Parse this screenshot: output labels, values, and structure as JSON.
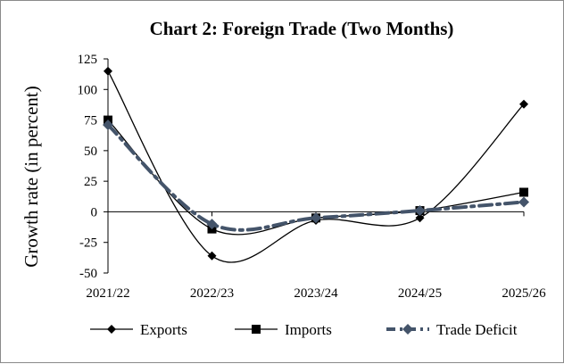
{
  "chart_data": {
    "type": "line",
    "title": "Chart 2: Foreign Trade (Two Months)",
    "xlabel": "",
    "ylabel": "Growth rate (in percent)",
    "categories": [
      "2021/22",
      "2022/23",
      "2023/24",
      "2024/25",
      "2025/26"
    ],
    "ylim": [
      -50,
      125
    ],
    "yticks": [
      -50,
      -25,
      0,
      25,
      50,
      75,
      100,
      125
    ],
    "ytick_labels": [
      "-50",
      "-25",
      "0",
      "25",
      "50",
      "75",
      "100",
      "125"
    ],
    "grid": false,
    "legend_position": "bottom",
    "smooth": true,
    "series": [
      {
        "name": "Exports",
        "values": [
          115,
          -36,
          -7,
          -5,
          88
        ],
        "color": "#000000",
        "marker": "diamond",
        "line": "solid"
      },
      {
        "name": "Imports",
        "values": [
          75,
          -14,
          -5,
          1,
          16
        ],
        "color": "#000000",
        "marker": "square",
        "line": "solid"
      },
      {
        "name": "Trade Deficit",
        "values": [
          71,
          -10,
          -5,
          1,
          8
        ],
        "color": "#44546a",
        "marker": "diamond",
        "line": "dash-dot"
      }
    ]
  }
}
